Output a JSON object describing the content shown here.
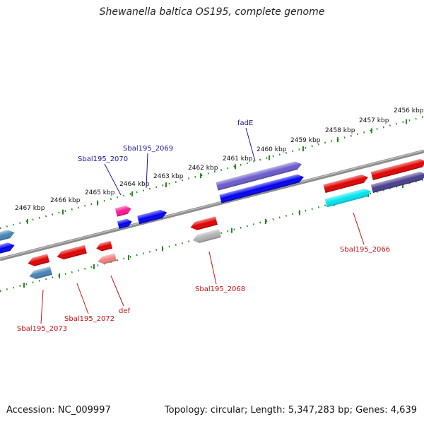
{
  "title": "Shewanella baltica OS195, complete genome",
  "footer": {
    "accession": "Accession: NC_009997",
    "stats": "Topology: circular; Length: 5,347,283 bp; Genes: 4,639"
  },
  "colors": {
    "backbone": "#808080",
    "scale_dots": "#228b22",
    "forward_label": "#1a1a9c",
    "reverse_label": "#cc1010"
  },
  "scale_ticks": [
    {
      "label": "2456 kbp"
    },
    {
      "label": "2457 kbp"
    },
    {
      "label": "2458 kbp"
    },
    {
      "label": "2459 kbp"
    },
    {
      "label": "2460 kbp"
    },
    {
      "label": "2461 kbp"
    },
    {
      "label": "2462 kbp"
    },
    {
      "label": "2463 kbp"
    },
    {
      "label": "2464 kbp"
    },
    {
      "label": "2465 kbp"
    },
    {
      "label": "2466 kbp"
    },
    {
      "label": "2467 kbp"
    }
  ],
  "genes": [
    {
      "id": "g-fade",
      "strand": "forward",
      "color": "#6a5acd"
    },
    {
      "id": "g-blue-long",
      "strand": "forward",
      "color": "#0000ee"
    },
    {
      "id": "g-2069",
      "strand": "forward",
      "color": "#0000ee"
    },
    {
      "id": "g-2070",
      "strand": "forward",
      "color": "#0000ee"
    },
    {
      "id": "g-pink",
      "strand": "forward",
      "color": "#ff1493"
    },
    {
      "id": "g-left-steel",
      "strand": "forward",
      "color": "#4682b4"
    },
    {
      "id": "g-left-blue",
      "strand": "forward",
      "color": "#0000ee"
    },
    {
      "id": "g-right-red",
      "strand": "forward",
      "color": "#e00000"
    },
    {
      "id": "g-2066-red",
      "strand": "forward",
      "color": "#e00000"
    },
    {
      "id": "g-right-navy",
      "strand": "forward",
      "color": "#483d8b"
    },
    {
      "id": "g-2066",
      "strand": "forward",
      "color": "#00e5ee"
    },
    {
      "id": "g-2068",
      "strand": "reverse",
      "color": "#e00000"
    },
    {
      "id": "g-2068-gray",
      "strand": "reverse",
      "color": "#b0b0b0"
    },
    {
      "id": "g-def",
      "strand": "reverse",
      "color": "#e00000"
    },
    {
      "id": "g-def-pink",
      "strand": "reverse",
      "color": "#f08080"
    },
    {
      "id": "g-2072",
      "strand": "reverse",
      "color": "#e00000"
    },
    {
      "id": "g-2073",
      "strand": "reverse",
      "color": "#e00000"
    },
    {
      "id": "g-2073-steel",
      "strand": "reverse",
      "color": "#4682b4"
    }
  ],
  "labels": [
    {
      "text": "fadE",
      "strand": "forward"
    },
    {
      "text": "Sbal195_2069",
      "strand": "forward"
    },
    {
      "text": "Sbal195_2070",
      "strand": "forward"
    },
    {
      "text": "Sbal195_2066",
      "strand": "reverse"
    },
    {
      "text": "Sbal195_2068",
      "strand": "reverse"
    },
    {
      "text": "def",
      "strand": "reverse"
    },
    {
      "text": "Sbal195_2072",
      "strand": "reverse"
    },
    {
      "text": "Sbal195_2073",
      "strand": "reverse"
    }
  ]
}
